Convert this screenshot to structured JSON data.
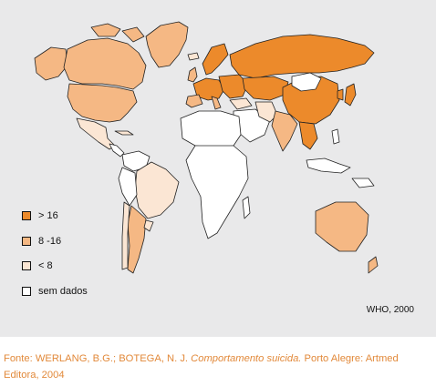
{
  "map": {
    "colors": {
      "background": "#e9e9ea",
      "high": "#ec8a2b",
      "medium": "#f5b884",
      "low": "#fbe6d4",
      "no_data": "#ffffff",
      "border": "#222222"
    }
  },
  "legend": {
    "items": [
      {
        "label": "> 16",
        "color": "#ec8a2b"
      },
      {
        "label": "8 -16",
        "color": "#f5b884"
      },
      {
        "label": "< 8",
        "color": "#fbe6d4"
      },
      {
        "label": "sem dados",
        "color": "#ffffff"
      }
    ]
  },
  "source_credit": "WHO, 2000",
  "caption": {
    "prefix": "Fonte: WERLANG, B.G.; BOTEGA, N. J. ",
    "title": "Comportamento suicida.",
    "suffix": " Porto Alegre: Artmed Editora, 2004"
  }
}
